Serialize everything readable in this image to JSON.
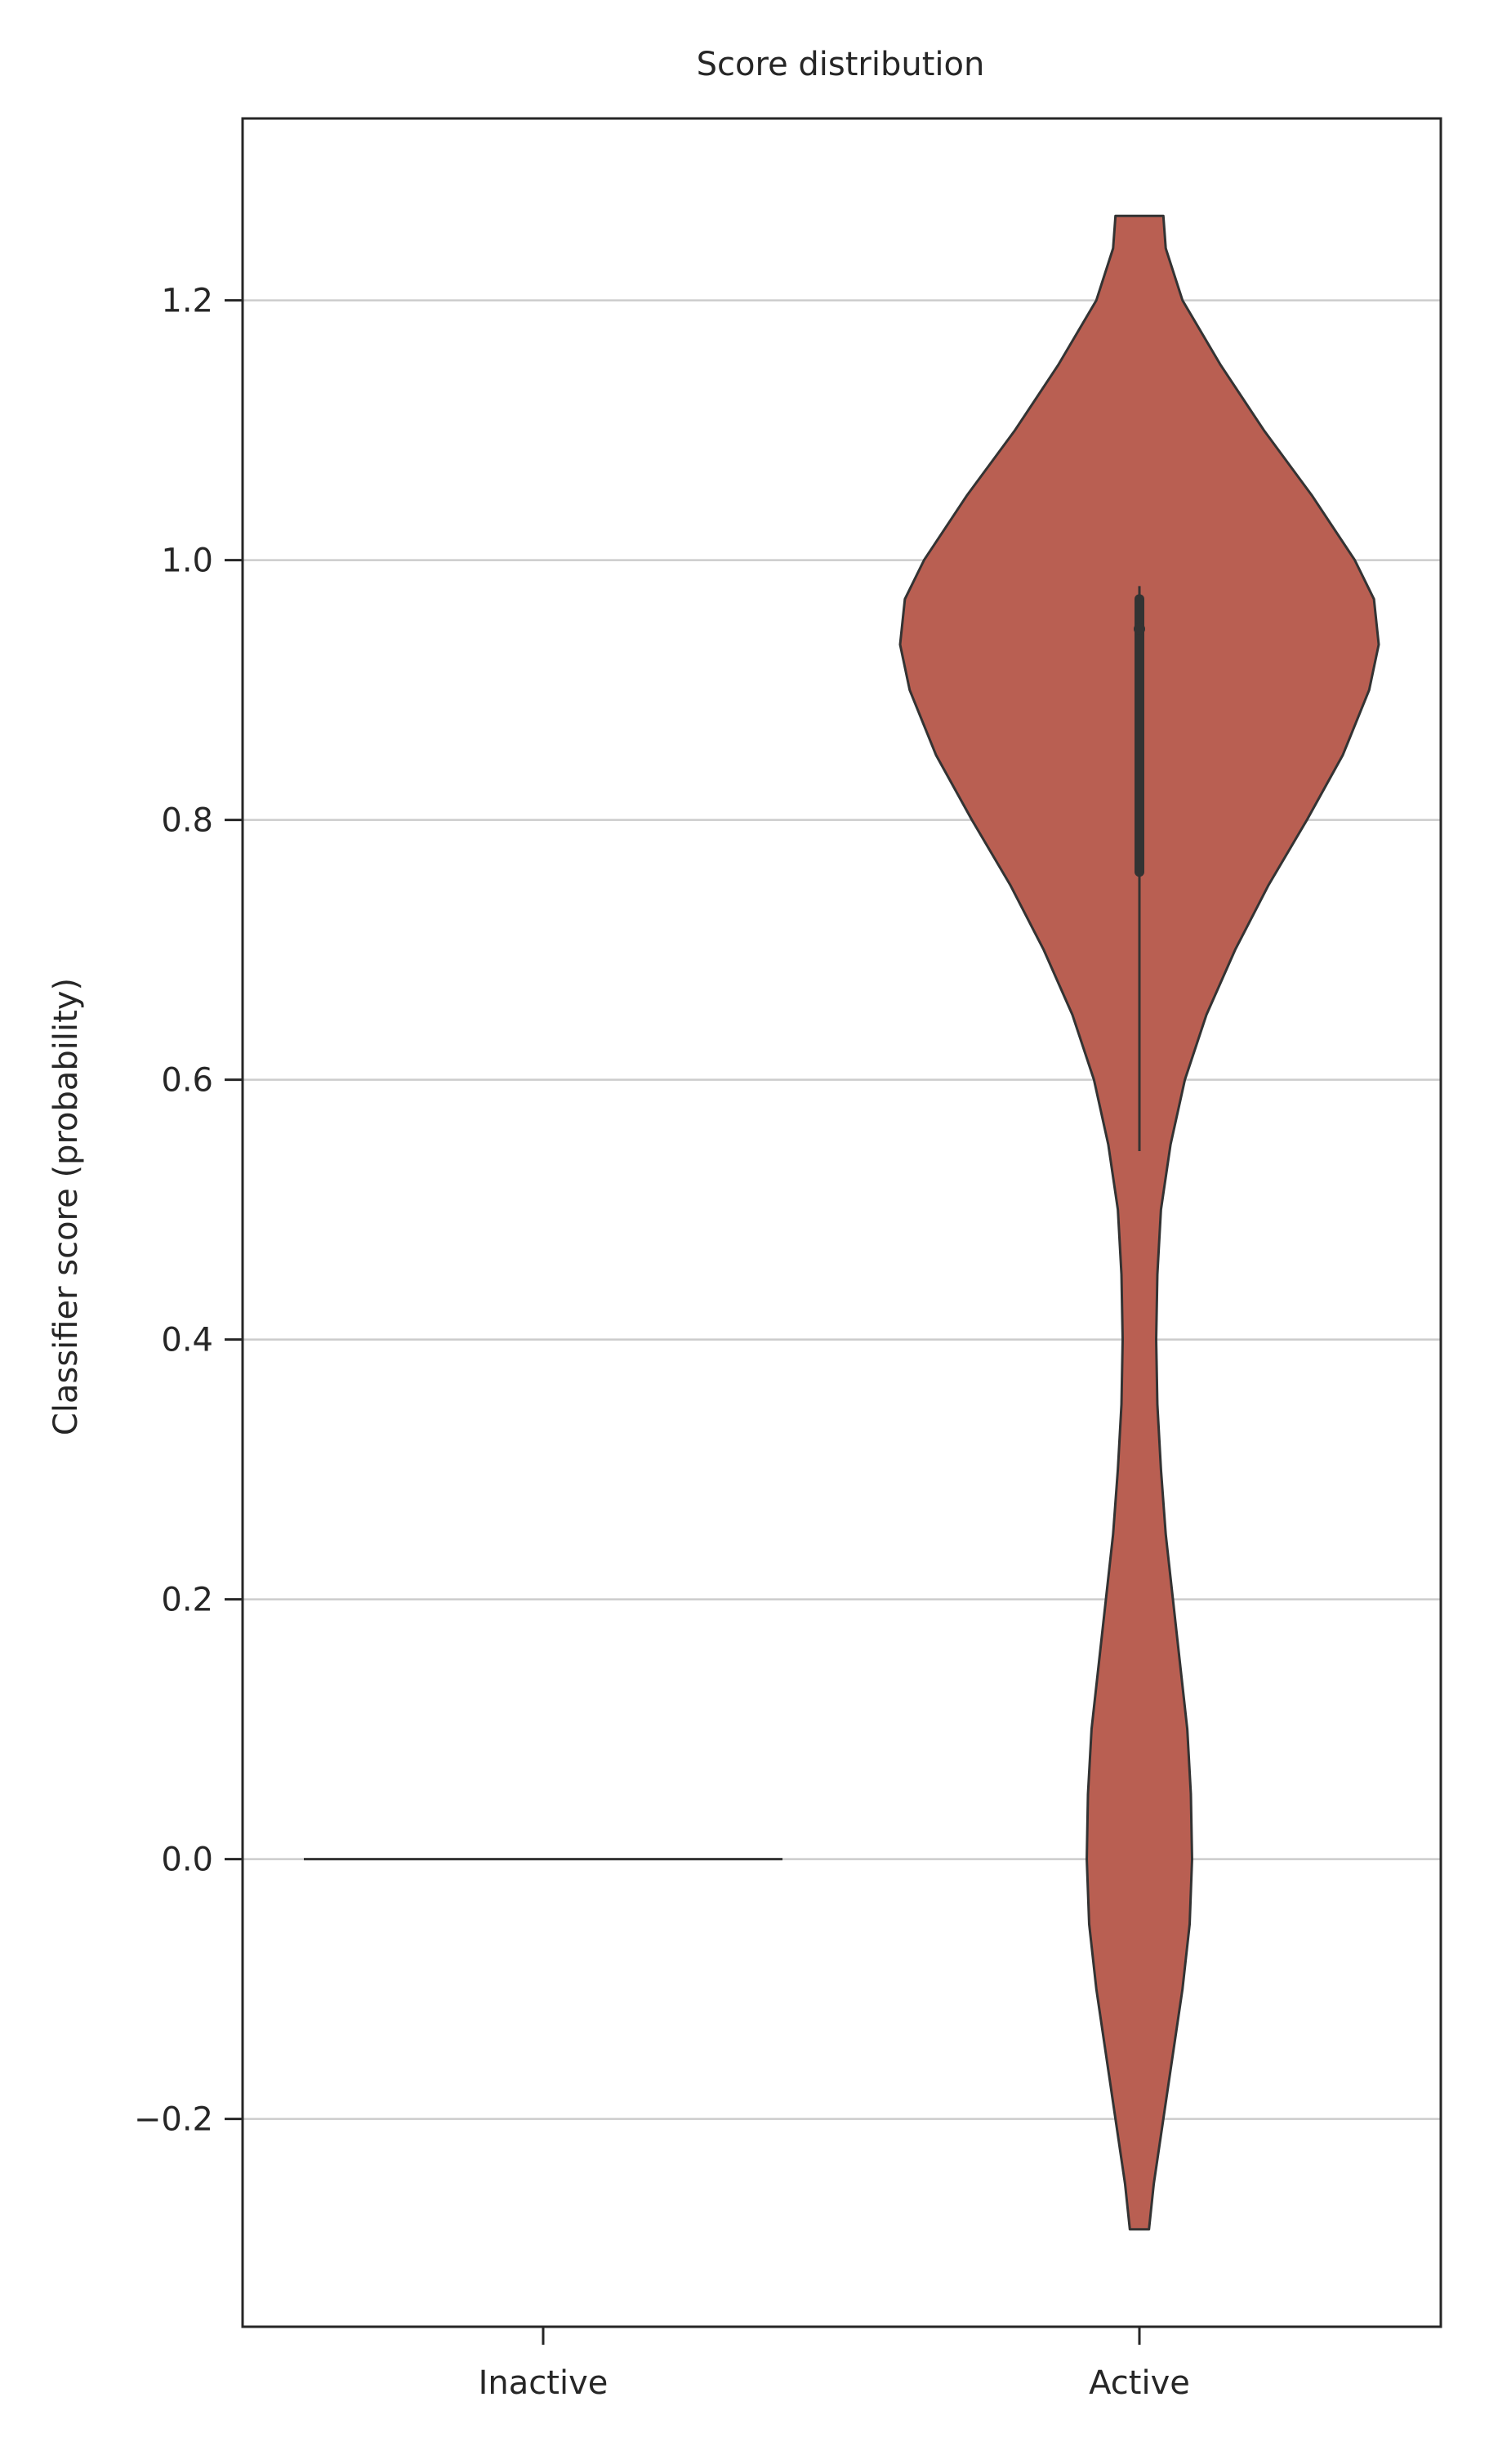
{
  "chart_data": {
    "type": "violin",
    "title": "Score distribution",
    "xlabel": "",
    "ylabel": "Classifier score (probability)",
    "ylim": [
      -0.36,
      1.34
    ],
    "yticks": [
      -0.2,
      0.0,
      0.2,
      0.4,
      0.6,
      0.8,
      1.0,
      1.2
    ],
    "ytick_labels": [
      "−0.2",
      "0.0",
      "0.2",
      "0.4",
      "0.6",
      "0.8",
      "1.0",
      "1.2"
    ],
    "categories": [
      "Inactive",
      "Active"
    ],
    "grid": "horizontal",
    "colors": {
      "violin_fill": "#b95f52",
      "outline": "#333333",
      "grid": "#cccccc",
      "axis": "#262626"
    },
    "series": [
      {
        "category": "Inactive",
        "min": 0.0,
        "max": 0.0,
        "q1": 0.0,
        "median": 0.0,
        "q3": 0.0,
        "density": [
          {
            "y": 0.0,
            "w": 1.0
          }
        ]
      },
      {
        "category": "Active",
        "min": -0.285,
        "max": 1.265,
        "whisker_low": 0.545,
        "whisker_high": 0.98,
        "q1": 0.76,
        "median": 0.947,
        "q3": 0.97,
        "density": [
          {
            "y": -0.285,
            "w": 0.04
          },
          {
            "y": -0.25,
            "w": 0.06
          },
          {
            "y": -0.2,
            "w": 0.1
          },
          {
            "y": -0.15,
            "w": 0.14
          },
          {
            "y": -0.1,
            "w": 0.18
          },
          {
            "y": -0.05,
            "w": 0.21
          },
          {
            "y": 0.0,
            "w": 0.22
          },
          {
            "y": 0.05,
            "w": 0.215
          },
          {
            "y": 0.1,
            "w": 0.2
          },
          {
            "y": 0.15,
            "w": 0.17
          },
          {
            "y": 0.2,
            "w": 0.14
          },
          {
            "y": 0.25,
            "w": 0.11
          },
          {
            "y": 0.3,
            "w": 0.09
          },
          {
            "y": 0.35,
            "w": 0.075
          },
          {
            "y": 0.4,
            "w": 0.07
          },
          {
            "y": 0.45,
            "w": 0.075
          },
          {
            "y": 0.5,
            "w": 0.09
          },
          {
            "y": 0.55,
            "w": 0.13
          },
          {
            "y": 0.6,
            "w": 0.19
          },
          {
            "y": 0.65,
            "w": 0.28
          },
          {
            "y": 0.7,
            "w": 0.4
          },
          {
            "y": 0.75,
            "w": 0.54
          },
          {
            "y": 0.8,
            "w": 0.7
          },
          {
            "y": 0.85,
            "w": 0.85
          },
          {
            "y": 0.9,
            "w": 0.96
          },
          {
            "y": 0.935,
            "w": 1.0
          },
          {
            "y": 0.97,
            "w": 0.98
          },
          {
            "y": 1.0,
            "w": 0.9
          },
          {
            "y": 1.05,
            "w": 0.72
          },
          {
            "y": 1.1,
            "w": 0.52
          },
          {
            "y": 1.15,
            "w": 0.34
          },
          {
            "y": 1.2,
            "w": 0.18
          },
          {
            "y": 1.24,
            "w": 0.11
          },
          {
            "y": 1.265,
            "w": 0.1
          }
        ]
      }
    ]
  }
}
